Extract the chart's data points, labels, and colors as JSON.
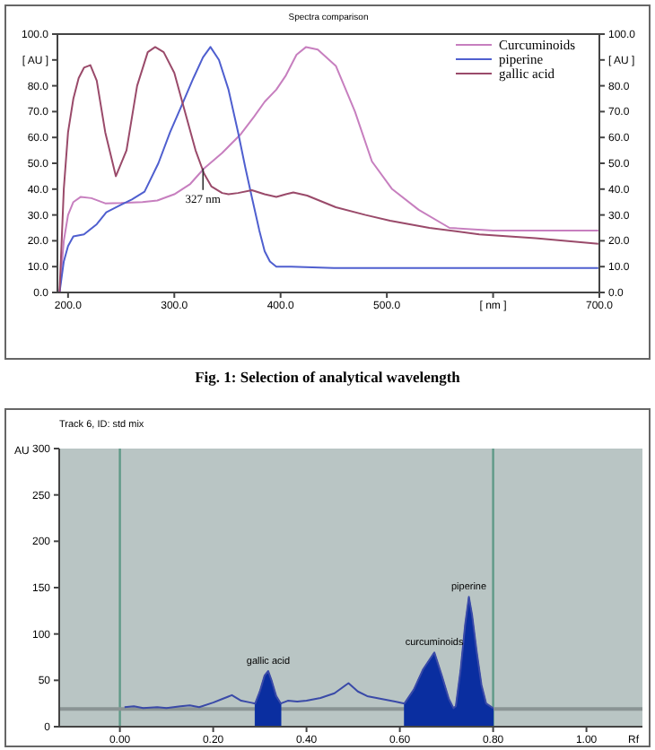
{
  "chart_data": [
    {
      "type": "line",
      "title": "Spectra comparison",
      "xlim": [
        190,
        700
      ],
      "xticks": [
        {
          "value": 200,
          "label": "200.0"
        },
        {
          "value": 300,
          "label": "300.0"
        },
        {
          "value": 400,
          "label": "400.0"
        },
        {
          "value": 500,
          "label": "500.0"
        },
        {
          "value": 600,
          "label": "[ nm ]"
        },
        {
          "value": 700,
          "label": "700.0"
        }
      ],
      "ylim": [
        0,
        100
      ],
      "yticks": [
        {
          "value": 0,
          "label": "0.0"
        },
        {
          "value": 10,
          "label": "10.0"
        },
        {
          "value": 20,
          "label": "20.0"
        },
        {
          "value": 30,
          "label": "30.0"
        },
        {
          "value": 40,
          "label": "40.0"
        },
        {
          "value": 50,
          "label": "50.0"
        },
        {
          "value": 60,
          "label": "60.0"
        },
        {
          "value": 70,
          "label": "70.0"
        },
        {
          "value": 80,
          "label": "80.0"
        },
        {
          "value": 90,
          "label": "[ AU ]"
        },
        {
          "value": 100,
          "label": "100.0"
        }
      ],
      "y2lim": [
        0,
        100
      ],
      "y2ticks": [
        {
          "value": 0,
          "label": "0.0"
        },
        {
          "value": 10,
          "label": "10.0"
        },
        {
          "value": 20,
          "label": "20.0"
        },
        {
          "value": 30,
          "label": "30.0"
        },
        {
          "value": 40,
          "label": "40.0"
        },
        {
          "value": 50,
          "label": "50.0"
        },
        {
          "value": 60,
          "label": "60.0"
        },
        {
          "value": 70,
          "label": "70.0"
        },
        {
          "value": 80,
          "label": "80.0"
        },
        {
          "value": 90,
          "label": "[ AU ]"
        },
        {
          "value": 100,
          "label": "100.0"
        }
      ],
      "legend": "top right",
      "grid": false,
      "annotations": [
        {
          "text": "327 nm",
          "x": 327,
          "y": 48
        },
        "Fig. 1: Selection of analytical wavelength"
      ],
      "series": [
        {
          "name": "Curcuminoids",
          "color": "#c77fbf",
          "x": [
            192,
            196,
            200,
            205,
            212,
            222,
            235,
            250,
            270,
            284,
            300,
            315,
            328,
            345,
            362,
            375,
            385,
            396,
            405,
            415,
            424,
            435,
            452,
            470,
            486,
            505,
            530,
            559,
            600,
            650,
            699
          ],
          "values": [
            0,
            20,
            30,
            35,
            37,
            36.5,
            34.5,
            34.6,
            35,
            35.6,
            38,
            42,
            48,
            54,
            61,
            68,
            73.8,
            78.5,
            84,
            92,
            95,
            94,
            87.7,
            70,
            50.7,
            40,
            32,
            25,
            24,
            24,
            24
          ]
        },
        {
          "name": "piperine",
          "color": "#4f5fcf",
          "x": [
            192,
            196,
            200,
            205,
            215,
            227,
            236,
            250,
            260,
            272,
            285,
            296,
            306,
            318,
            327,
            334,
            342,
            351,
            360,
            367,
            373,
            380,
            385,
            390,
            396,
            410,
            450,
            550,
            699
          ],
          "values": [
            0,
            12,
            18,
            21.7,
            22.5,
            26.4,
            31,
            34,
            36,
            39,
            50,
            62,
            71.5,
            83,
            91,
            95,
            90,
            78.5,
            62,
            48,
            36.8,
            24,
            16,
            12,
            10,
            10,
            9.5,
            9.5,
            9.5
          ]
        },
        {
          "name": "gallic acid",
          "color": "#9a4a6a",
          "x": [
            192,
            196,
            200,
            205,
            210,
            215,
            221,
            227,
            235,
            245,
            255,
            265,
            275,
            282,
            290,
            300,
            310,
            320,
            328,
            335,
            345,
            351,
            360,
            373,
            385,
            396,
            405,
            412,
            425,
            452,
            480,
            503,
            540,
            587,
            640,
            699
          ],
          "values": [
            0,
            40,
            62,
            75,
            83,
            87,
            88,
            82,
            62,
            45,
            55,
            80,
            93,
            95,
            93,
            85,
            70,
            55,
            46,
            41,
            38.5,
            38,
            38.5,
            39.6,
            38,
            37,
            38,
            38.7,
            37.5,
            33,
            30,
            27.8,
            25,
            22.5,
            21,
            18.8
          ]
        }
      ]
    },
    {
      "type": "line",
      "title": "Track 6, ID: std mix",
      "xlabel": "Rf",
      "ylabel": "AU",
      "xlim": [
        -0.13,
        1.12
      ],
      "xticks": [
        {
          "value": 0,
          "label": "0.00"
        },
        {
          "value": 0.2,
          "label": "0.20"
        },
        {
          "value": 0.4,
          "label": "0.40"
        },
        {
          "value": 0.6,
          "label": "0.60"
        },
        {
          "value": 0.8,
          "label": "0.80"
        },
        {
          "value": 1,
          "label": "1.00"
        }
      ],
      "ylim": [
        0,
        300
      ],
      "yticks": [
        0,
        50,
        100,
        150,
        200,
        250,
        300
      ],
      "grid": false,
      "ref_lines": [
        {
          "axis": "x",
          "value": 0,
          "color": "#5f9a88"
        },
        {
          "axis": "x",
          "value": 0.8,
          "color": "#5f9a88"
        },
        {
          "axis": "y",
          "value": 19,
          "color": "#8a9494"
        }
      ],
      "annotations": [
        {
          "text": "gallic acid",
          "x": 0.318,
          "y": 60
        },
        {
          "text": "curcuminoids",
          "x": 0.674,
          "y": 80
        },
        {
          "text": "piperine",
          "x": 0.748,
          "y": 140
        }
      ],
      "series": [
        {
          "color": "#3a4aa8",
          "x": [
            0.01,
            0.03,
            0.05,
            0.08,
            0.1,
            0.13,
            0.15,
            0.17,
            0.2,
            0.22,
            0.24,
            0.26,
            0.28,
            0.29,
            0.3,
            0.31,
            0.318,
            0.325,
            0.335,
            0.345,
            0.36,
            0.38,
            0.4,
            0.43,
            0.46,
            0.49,
            0.51,
            0.53,
            0.56,
            0.59,
            0.61,
            0.63,
            0.65,
            0.674,
            0.69,
            0.705,
            0.715,
            0.72,
            0.73,
            0.74,
            0.748,
            0.755,
            0.765,
            0.775,
            0.785,
            0.8
          ],
          "values": [
            21,
            22,
            20,
            21,
            20,
            22,
            23,
            21,
            26,
            30,
            34,
            28,
            26,
            25,
            38,
            55,
            60,
            50,
            33,
            25,
            28,
            27,
            28,
            31,
            36,
            47,
            38,
            33,
            30,
            27,
            25,
            40,
            62,
            80,
            55,
            30,
            20,
            22,
            60,
            110,
            140,
            120,
            80,
            45,
            25,
            20
          ]
        },
        {
          "type": "area",
          "color": "#0a2ea0",
          "x": [
            0.29,
            0.3,
            0.31,
            0.318,
            0.325,
            0.335,
            0.345
          ],
          "values": [
            25,
            38,
            55,
            60,
            50,
            33,
            25
          ]
        },
        {
          "type": "area",
          "color": "#0a2ea0",
          "x": [
            0.61,
            0.63,
            0.65,
            0.674,
            0.69,
            0.705,
            0.715,
            0.72,
            0.73,
            0.74,
            0.748,
            0.755,
            0.765,
            0.775,
            0.785,
            0.8
          ],
          "values": [
            25,
            40,
            62,
            80,
            55,
            30,
            20,
            22,
            60,
            110,
            140,
            120,
            80,
            45,
            25,
            20
          ]
        }
      ]
    }
  ]
}
